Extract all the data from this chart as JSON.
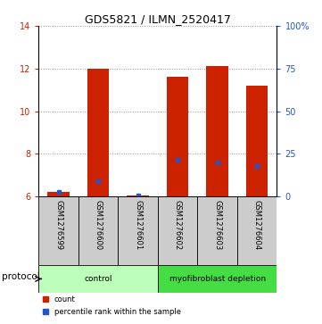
{
  "title": "GDS5821 / ILMN_2520417",
  "samples": [
    "GSM1276599",
    "GSM1276600",
    "GSM1276601",
    "GSM1276602",
    "GSM1276603",
    "GSM1276604"
  ],
  "red_bar_tops": [
    6.22,
    12.0,
    6.05,
    11.62,
    12.1,
    11.2
  ],
  "blue_values": [
    6.22,
    6.72,
    6.05,
    7.72,
    7.62,
    7.42
  ],
  "bar_bottom": 6.0,
  "ylim_left": [
    6,
    14
  ],
  "ylim_right": [
    0,
    100
  ],
  "yticks_left": [
    6,
    8,
    10,
    12,
    14
  ],
  "yticks_right": [
    0,
    25,
    50,
    75,
    100
  ],
  "ytick_labels_right": [
    "0",
    "25",
    "50",
    "75",
    "100%"
  ],
  "red_color": "#cc2200",
  "blue_color": "#2255cc",
  "bar_width": 0.55,
  "protocol_groups": [
    {
      "label": "control",
      "indices": [
        0,
        1,
        2
      ],
      "color": "#bbffbb"
    },
    {
      "label": "myofibroblast depletion",
      "indices": [
        3,
        4,
        5
      ],
      "color": "#44dd44"
    }
  ],
  "protocol_label": "protocol",
  "legend_items": [
    {
      "label": "count",
      "color": "#cc2200"
    },
    {
      "label": "percentile rank within the sample",
      "color": "#2255cc"
    }
  ],
  "grid_color": "#999999",
  "bg_color": "#ffffff",
  "sample_box_color": "#cccccc",
  "title_fontsize": 9,
  "tick_fontsize": 7,
  "label_fontsize": 7
}
